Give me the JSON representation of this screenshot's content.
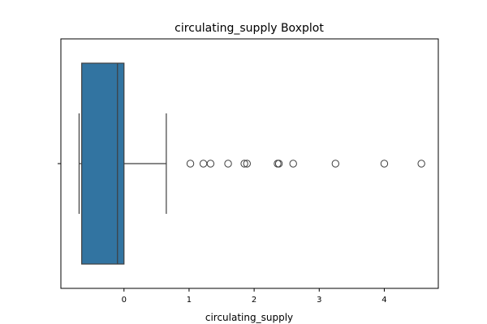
{
  "chart_data": {
    "type": "box",
    "title": "circulating_supply Boxplot",
    "xlabel": "circulating_supply",
    "ylabel": "",
    "xlim": [
      -0.97,
      4.83
    ],
    "xticks": [
      0,
      1,
      2,
      3,
      4
    ],
    "xtick_labels": [
      "0",
      "1",
      "2",
      "3",
      "4"
    ],
    "grid": false,
    "legend": "none",
    "box": {
      "whisker_low": -0.69,
      "q1": -0.65,
      "median": -0.1,
      "q3": 0.0,
      "whisker_high": 0.65,
      "fill_color": "#3274a1",
      "line_color": "#3f3f3f"
    },
    "outliers": [
      1.02,
      1.22,
      1.33,
      1.6,
      1.85,
      1.89,
      2.36,
      2.38,
      2.6,
      3.25,
      4.0,
      4.57
    ]
  }
}
